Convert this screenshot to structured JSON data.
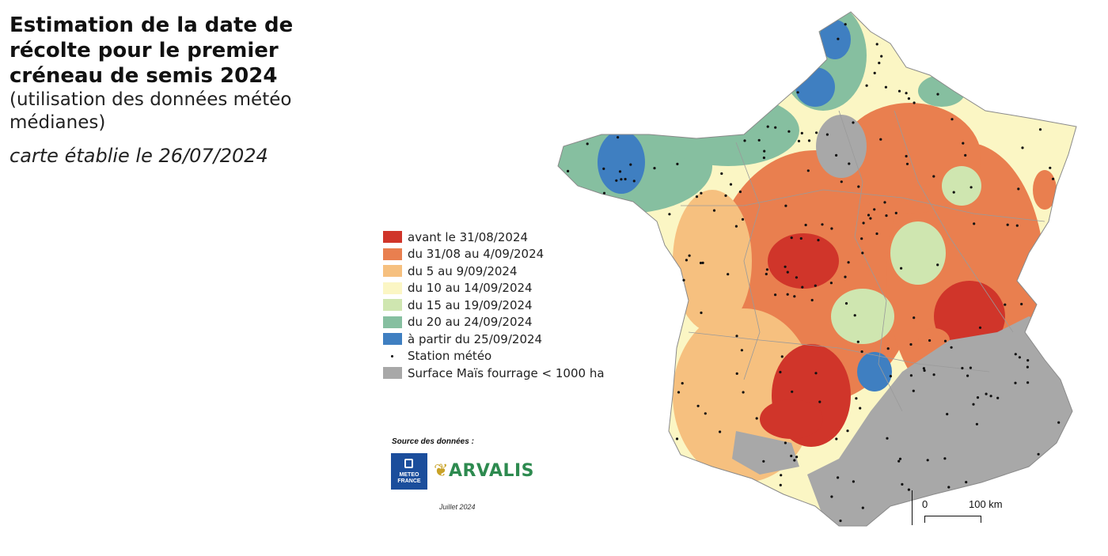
{
  "header": {
    "title": "Estimation de la date de récolte pour le premier créneau de semis 2024",
    "subtitle": "(utilisation des données météo médianes)",
    "date_line": "carte établie le 26/07/2024"
  },
  "legend": {
    "items": [
      {
        "label": "avant le 31/08/2024",
        "color": "#d0352a"
      },
      {
        "label": "du 31/08 au 4/09/2024",
        "color": "#e97f4f"
      },
      {
        "label": "du 5 au 9/09/2024",
        "color": "#f6c07f"
      },
      {
        "label": "du 10 au 14/09/2024",
        "color": "#fbf6c4"
      },
      {
        "label": "du 15 au 19/09/2024",
        "color": "#cfe6b0"
      },
      {
        "label": "du 20 au 24/09/2024",
        "color": "#86bfa0"
      },
      {
        "label": "à partir du 25/09/2024",
        "color": "#3f7fc1"
      }
    ],
    "station_label": "Station météo",
    "gray_label": "Surface Maïs fourrage < 1000 ha",
    "gray_color": "#a8a8a8"
  },
  "credits": {
    "source_label": "Source des données :",
    "meteo_france_text": "METEO FRANCE",
    "arvalis_text": "ARVALIS",
    "date": "Juillet 2024"
  },
  "scale": {
    "zero": "0",
    "distance": "100 km"
  }
}
